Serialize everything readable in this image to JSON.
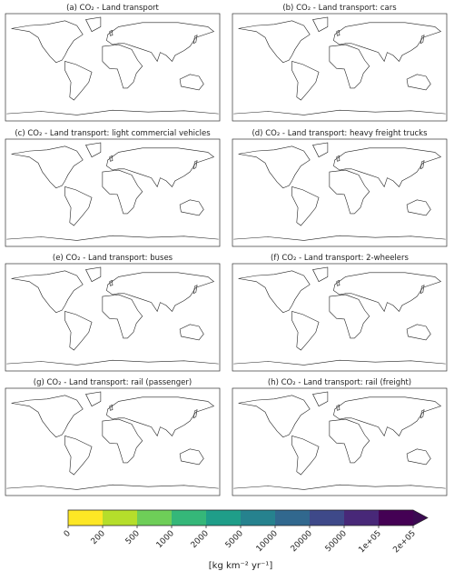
{
  "panels": [
    {
      "title": "(a) CO₂ - Land transport"
    },
    {
      "title": "(b) CO₂ - Land transport: cars"
    },
    {
      "title": "(c) CO₂ - Land transport: light commercial vehicles"
    },
    {
      "title": "(d) CO₂ - Land transport: heavy freight trucks"
    },
    {
      "title": "(e) CO₂ - Land transport: buses"
    },
    {
      "title": "(f) CO₂ - Land transport: 2-wheelers"
    },
    {
      "title": "(g) CO₂ - Land transport: rail (passenger)"
    },
    {
      "title": "(h) CO₂ - Land transport: rail (freight)"
    }
  ],
  "colorbar": {
    "ticks": [
      0,
      200,
      500,
      1000,
      2000,
      5000,
      10000,
      20000,
      50000,
      {
        "value": 100000,
        "label": "1e+05"
      },
      {
        "value": 200000,
        "label": "2e+05"
      }
    ],
    "colors": [
      "#fde725",
      "#b5de2b",
      "#6ece58",
      "#35b779",
      "#1f9e89",
      "#26828e",
      "#31688e",
      "#3e4989",
      "#482878",
      "#440154"
    ],
    "extend_color": "#3b0a52",
    "label": "[kg km⁻² yr⁻¹]"
  }
}
